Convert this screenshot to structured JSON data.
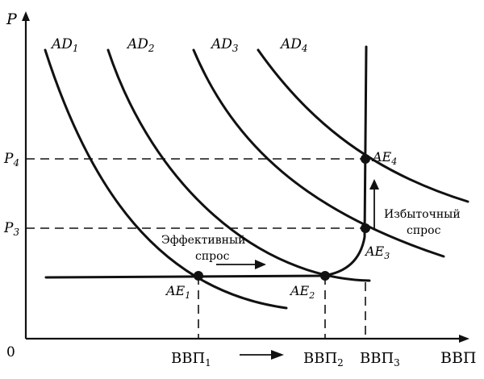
{
  "axes": {
    "y_label": "P",
    "x_label": "ВВП",
    "origin": "0"
  },
  "y_ticks": [
    {
      "main": "P",
      "sub": "4"
    },
    {
      "main": "P",
      "sub": "3"
    }
  ],
  "x_ticks": [
    {
      "main": "ВВП",
      "sub": "1"
    },
    {
      "main": "ВВП",
      "sub": "2"
    },
    {
      "main": "ВВП",
      "sub": "3"
    }
  ],
  "curves": [
    {
      "main": "AD",
      "sub": "1"
    },
    {
      "main": "AD",
      "sub": "2"
    },
    {
      "main": "AD",
      "sub": "3"
    },
    {
      "main": "AD",
      "sub": "4"
    }
  ],
  "points": [
    {
      "main": "AE",
      "sub": "1"
    },
    {
      "main": "AE",
      "sub": "2"
    },
    {
      "main": "AE",
      "sub": "3"
    },
    {
      "main": "AE",
      "sub": "4"
    }
  ],
  "annotations": {
    "effective_line1": "Эффективный",
    "effective_line2": "спрос",
    "excess_line1": "Избыточный",
    "excess_line2": "спрос"
  }
}
